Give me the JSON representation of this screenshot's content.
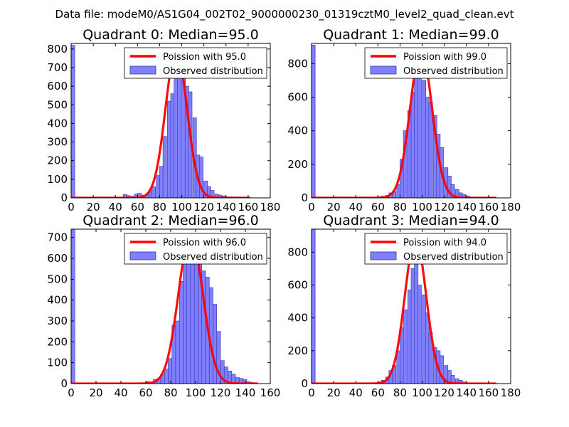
{
  "suptitle": "Data file: modeM0/AS1G04_002T02_9000000230_01319cztM0_level2_quad_clean.evt",
  "colors": {
    "poisson": "#ff0000",
    "hist_fill": "#7f7fff",
    "hist_edge": "#3333aa",
    "axes": "#000000"
  },
  "chart_data": [
    {
      "type": "bar",
      "title": "Quadrant 0: Median=95.0",
      "median": 95.0,
      "xlim": [
        0,
        180
      ],
      "ylim": [
        0,
        830
      ],
      "xticks": [
        0,
        20,
        40,
        60,
        80,
        100,
        120,
        140,
        160,
        180
      ],
      "yticks": [
        0,
        100,
        200,
        300,
        400,
        500,
        600,
        700,
        800
      ],
      "legend": [
        "Poission with 95.0",
        "Observed distribution"
      ],
      "legend_loc": "upper right",
      "bin_width": 3.3,
      "bin_edges_start": [
        0,
        47,
        50,
        53,
        57,
        60,
        63,
        67,
        70,
        73,
        77,
        80,
        83,
        87,
        90,
        93,
        96,
        100,
        103,
        106,
        110,
        113,
        116,
        120,
        123,
        126,
        130,
        133,
        136,
        140,
        143,
        150
      ],
      "counts": [
        820,
        18,
        12,
        8,
        20,
        25,
        15,
        20,
        40,
        60,
        120,
        170,
        330,
        520,
        560,
        720,
        760,
        700,
        600,
        570,
        430,
        230,
        220,
        90,
        60,
        40,
        20,
        15,
        10,
        5,
        5,
        3
      ],
      "curve": {
        "mean": 95.0,
        "scale": 790,
        "range": [
          0,
          162
        ]
      }
    },
    {
      "type": "bar",
      "title": "Quadrant 1: Median=99.0",
      "median": 99.0,
      "xlim": [
        0,
        180
      ],
      "ylim": [
        0,
        920
      ],
      "xticks": [
        0,
        20,
        40,
        60,
        80,
        100,
        120,
        140,
        160,
        180
      ],
      "yticks": [
        0,
        200,
        400,
        600,
        800
      ],
      "legend": [
        "Poission with 99.0",
        "Observed distribution"
      ],
      "legend_loc": "upper right",
      "bin_width": 3.3,
      "bin_edges_start": [
        0,
        60,
        63,
        67,
        70,
        73,
        77,
        80,
        83,
        87,
        90,
        93,
        96,
        100,
        103,
        106,
        110,
        113,
        116,
        120,
        123,
        126,
        130,
        133,
        136,
        140,
        143
      ],
      "counts": [
        910,
        5,
        10,
        15,
        30,
        40,
        80,
        230,
        400,
        520,
        630,
        740,
        840,
        700,
        600,
        570,
        490,
        380,
        300,
        180,
        130,
        80,
        50,
        30,
        20,
        10,
        5
      ],
      "curve": {
        "mean": 99.0,
        "scale": 880,
        "range": [
          0,
          167
        ]
      }
    },
    {
      "type": "bar",
      "title": "Quadrant 2: Median=96.0",
      "median": 96.0,
      "xlim": [
        0,
        160
      ],
      "ylim": [
        0,
        740
      ],
      "xticks": [
        0,
        20,
        40,
        60,
        80,
        100,
        120,
        140,
        160
      ],
      "yticks": [
        0,
        100,
        200,
        300,
        400,
        500,
        600,
        700
      ],
      "legend": [
        "Poission with 96.0",
        "Observed distribution"
      ],
      "legend_loc": "upper right",
      "bin_width": 3.0,
      "bin_edges_start": [
        0,
        60,
        63,
        66,
        69,
        72,
        75,
        78,
        81,
        84,
        87,
        90,
        93,
        96,
        99,
        102,
        105,
        108,
        111,
        114,
        117,
        120,
        123,
        126,
        129,
        132,
        135,
        138,
        141,
        144
      ],
      "counts": [
        740,
        10,
        8,
        20,
        25,
        45,
        70,
        120,
        280,
        300,
        490,
        600,
        620,
        660,
        640,
        600,
        540,
        510,
        460,
        380,
        250,
        110,
        80,
        60,
        45,
        30,
        25,
        20,
        10,
        5
      ],
      "curve": {
        "mean": 96.0,
        "scale": 712,
        "range": [
          0,
          150
        ]
      }
    },
    {
      "type": "bar",
      "title": "Quadrant 3: Median=94.0",
      "median": 94.0,
      "xlim": [
        0,
        180
      ],
      "ylim": [
        0,
        940
      ],
      "xticks": [
        0,
        20,
        40,
        60,
        80,
        100,
        120,
        140,
        160,
        180
      ],
      "yticks": [
        0,
        200,
        400,
        600,
        800
      ],
      "legend": [
        "Poission with 94.0",
        "Observed distribution"
      ],
      "legend_loc": "upper right",
      "bin_width": 3.3,
      "bin_edges_start": [
        0,
        50,
        60,
        63,
        67,
        70,
        73,
        77,
        80,
        83,
        87,
        90,
        93,
        96,
        100,
        103,
        106,
        110,
        113,
        116,
        120,
        123,
        126,
        130,
        133,
        136,
        140
      ],
      "counts": [
        940,
        5,
        10,
        20,
        40,
        80,
        110,
        200,
        340,
        450,
        570,
        700,
        750,
        600,
        540,
        430,
        310,
        220,
        200,
        170,
        110,
        80,
        50,
        30,
        20,
        10,
        5
      ],
      "curve": {
        "mean": 94.0,
        "scale": 880,
        "range": [
          0,
          167
        ]
      }
    }
  ]
}
